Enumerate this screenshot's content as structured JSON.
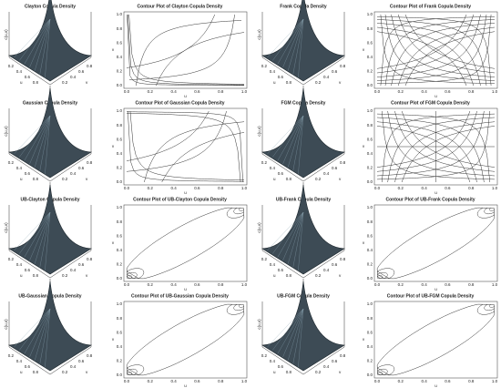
{
  "panels": [
    {
      "title": "Clayton Copula Density"
    },
    {
      "title": "Contour Plot of Clayton Copula Density"
    },
    {
      "title": "Frank Copula Density"
    },
    {
      "title": "Contour Plot of Frank Copula Density"
    },
    {
      "title": "Gaussian Copula Density"
    },
    {
      "title": "Contour Plot of Gaussian Copula Density"
    },
    {
      "title": "FGM Copula Density"
    },
    {
      "title": "Contour Plot of FGM Copula Density"
    },
    {
      "title": "UB-Clayton Copula Density"
    },
    {
      "title": "Contour Plot of UB-Clayton Copula Density"
    },
    {
      "title": "UB-Frank Copula Density"
    },
    {
      "title": "Contour Plot of UB-Frank Copula Density"
    },
    {
      "title": "UB-Gaussian Copula Density"
    },
    {
      "title": "Contour Plot of UB-Gaussian Copula Density"
    },
    {
      "title": "UB-FGM Copula Density"
    },
    {
      "title": "Contour Plot of UB-FGM Copula Density"
    }
  ],
  "axes": {
    "u": "u",
    "v": "v",
    "z": "c(u,v)",
    "ticks": [
      "0.0",
      "0.2",
      "0.4",
      "0.6",
      "0.8",
      "1.0"
    ],
    "surface_ticks": [
      "0.2",
      "0.4",
      "0.6",
      "0.8"
    ]
  }
}
